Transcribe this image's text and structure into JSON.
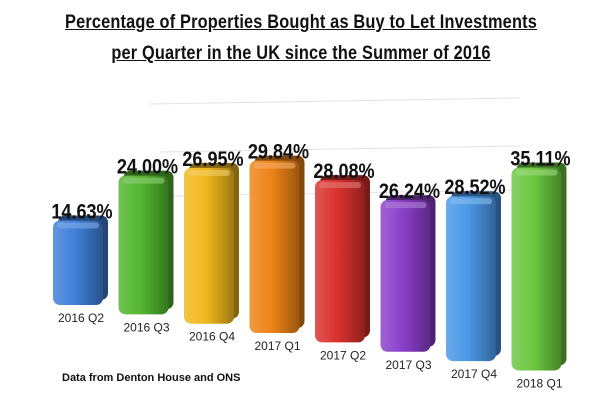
{
  "title_line1": "Percentage of Properties Bought as Buy to Let Investments",
  "title_line2": "per Quarter in the UK since the Summer of 2016",
  "source": "Data from Denton House and ONS",
  "chart_data": {
    "type": "bar",
    "title": "Percentage of Properties Bought as Buy to Let Investments per Quarter in the UK since the Summer of 2016",
    "categories": [
      "2016 Q2",
      "2016 Q3",
      "2016 Q4",
      "2017 Q1",
      "2017 Q2",
      "2017 Q3",
      "2017 Q4",
      "2018 Q1"
    ],
    "values": [
      14.63,
      24.0,
      26.95,
      29.84,
      28.08,
      26.24,
      28.52,
      35.11
    ],
    "labels": [
      "14.63%",
      "24.00%",
      "26.95%",
      "29.84%",
      "28.08%",
      "26.24%",
      "28.52%",
      "35.11%"
    ],
    "colors": [
      "#3f7fd8",
      "#52b52f",
      "#f0b81c",
      "#ee8316",
      "#d9312e",
      "#8a3fc9",
      "#4a98e6",
      "#6cc73f"
    ],
    "unit": "%",
    "grid": true,
    "legend": "none"
  }
}
